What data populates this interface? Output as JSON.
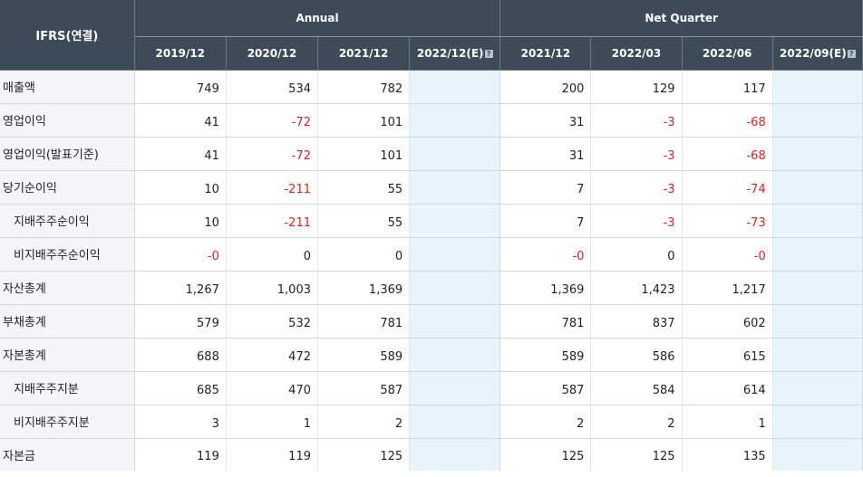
{
  "header": {
    "corner_label": "IFRS(연결)",
    "annual_label": "Annual",
    "quarter_label": "Net Quarter",
    "annual_periods": [
      "2019/12",
      "2020/12",
      "2021/12",
      "2022/12(E)"
    ],
    "quarter_periods": [
      "2021/12",
      "2022/03",
      "2022/06",
      "2022/09(E)"
    ],
    "help_glyph": "?"
  },
  "rows": [
    {
      "label": "매출액",
      "annual": [
        "749",
        "534",
        "782",
        ""
      ],
      "quarter": [
        "200",
        "129",
        "117",
        ""
      ]
    },
    {
      "label": "영업이익",
      "annual": [
        "41",
        "-72",
        "101",
        ""
      ],
      "quarter": [
        "31",
        "-3",
        "-68",
        ""
      ]
    },
    {
      "label": "영업이익(발표기준)",
      "annual": [
        "41",
        "-72",
        "101",
        ""
      ],
      "quarter": [
        "31",
        "-3",
        "-68",
        ""
      ]
    },
    {
      "label": "당기순이익",
      "annual": [
        "10",
        "-211",
        "55",
        ""
      ],
      "quarter": [
        "7",
        "-3",
        "-74",
        ""
      ]
    },
    {
      "label": "지배주주순이익",
      "annual": [
        "10",
        "-211",
        "55",
        ""
      ],
      "quarter": [
        "7",
        "-3",
        "-73",
        ""
      ]
    },
    {
      "label": "비지배주주순이익",
      "annual": [
        "-0",
        "0",
        "0",
        ""
      ],
      "quarter": [
        "-0",
        "0",
        "-0",
        ""
      ]
    },
    {
      "label": "자산총계",
      "annual": [
        "1,267",
        "1,003",
        "1,369",
        ""
      ],
      "quarter": [
        "1,369",
        "1,423",
        "1,217",
        ""
      ]
    },
    {
      "label": "부채총계",
      "annual": [
        "579",
        "532",
        "781",
        ""
      ],
      "quarter": [
        "781",
        "837",
        "602",
        ""
      ]
    },
    {
      "label": "자본총계",
      "annual": [
        "688",
        "472",
        "589",
        ""
      ],
      "quarter": [
        "589",
        "586",
        "615",
        ""
      ]
    },
    {
      "label": "지배주주지분",
      "annual": [
        "685",
        "470",
        "587",
        ""
      ],
      "quarter": [
        "587",
        "584",
        "614",
        ""
      ]
    },
    {
      "label": "비지배주주지분",
      "annual": [
        "3",
        "1",
        "2",
        ""
      ],
      "quarter": [
        "2",
        "2",
        "1",
        ""
      ]
    },
    {
      "label": "자본금",
      "annual": [
        "119",
        "119",
        "125",
        ""
      ],
      "quarter": [
        "125",
        "125",
        "135",
        ""
      ]
    }
  ],
  "colors": {
    "header_bg": "#3d4a57",
    "label_bg": "#f3f5f8",
    "estimate_bg": "#e7f4fb",
    "negative_text": "#e02020"
  }
}
